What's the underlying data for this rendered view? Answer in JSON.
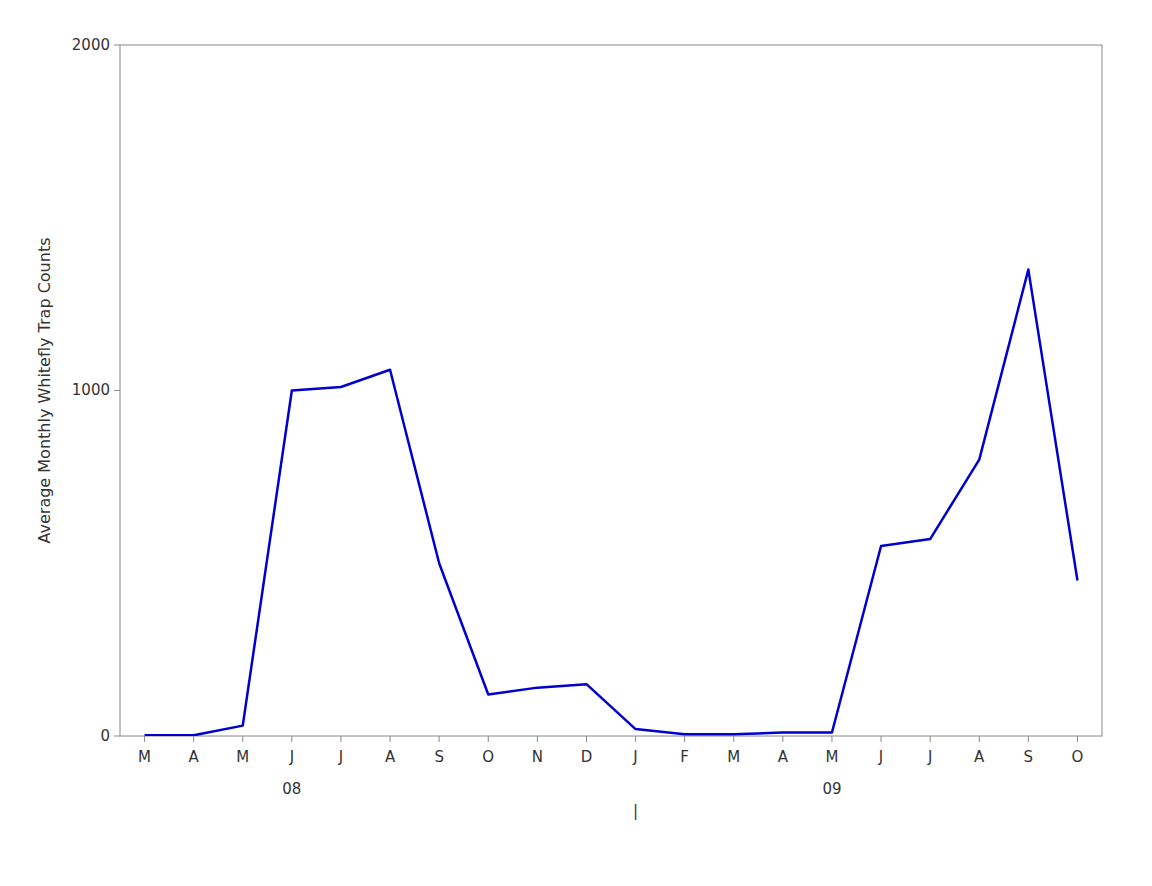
{
  "chart_data": {
    "type": "line",
    "ylabel": "Average Monthly Whitefly Trap Counts",
    "categories": [
      "M",
      "A",
      "M",
      "J",
      "J",
      "A",
      "S",
      "O",
      "N",
      "D",
      "J",
      "F",
      "M",
      "A",
      "M",
      "J",
      "J",
      "A",
      "S",
      "O"
    ],
    "values": [
      2,
      2,
      30,
      1000,
      1010,
      1060,
      500,
      120,
      140,
      150,
      20,
      5,
      5,
      10,
      10,
      550,
      570,
      800,
      1350,
      450
    ],
    "color": "#0000cc",
    "ylim": [
      0,
      2000
    ],
    "yticks": [
      0,
      1000,
      2000
    ],
    "grid": false,
    "annotations": [
      {
        "text": "08",
        "x": 3
      },
      {
        "text": "09",
        "x": 14
      },
      {
        "text": "|",
        "x": 10
      }
    ]
  }
}
